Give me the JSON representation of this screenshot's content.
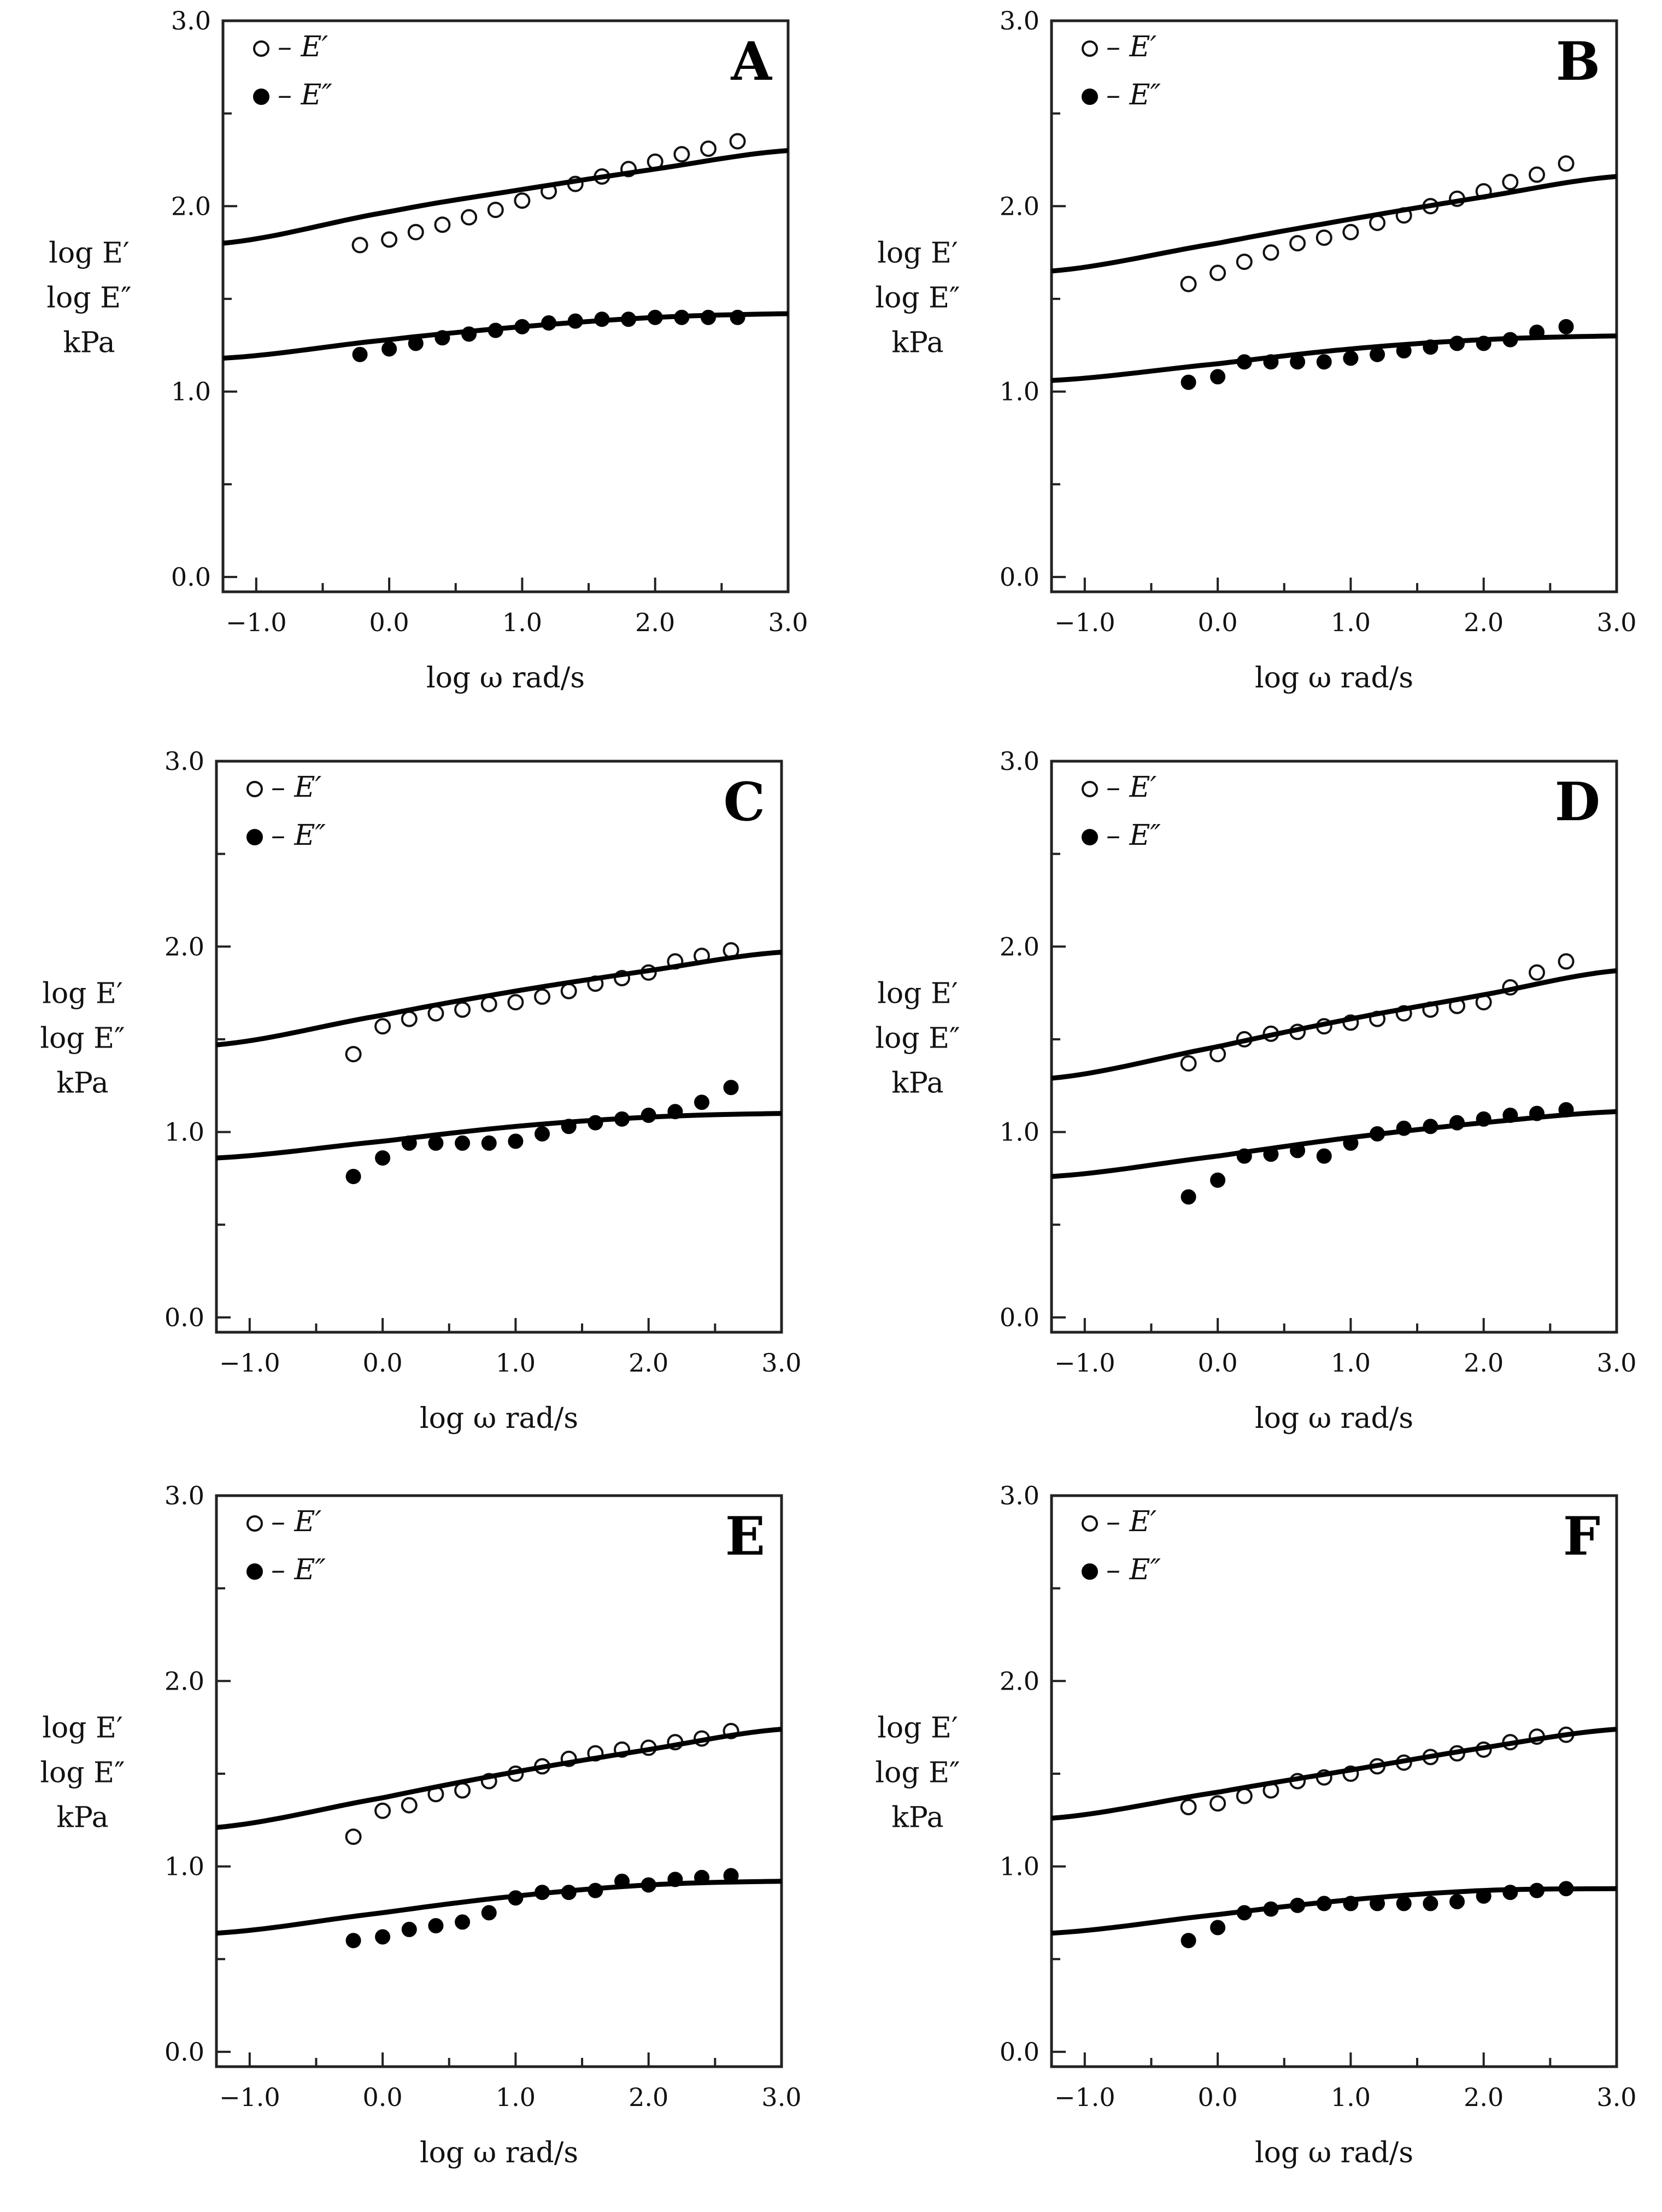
{
  "chart_data": [
    {
      "type": "scatter",
      "panel": "A",
      "xlabel": "log ω  rad/s",
      "ylabel": [
        "log E′",
        "log E″",
        "kPa"
      ],
      "xlim": [
        -1.25,
        3.0
      ],
      "ylim": [
        0.0,
        3.0
      ],
      "xticks": [
        "−1.0",
        "0.0",
        "1.0",
        "2.0",
        "3.0"
      ],
      "yticks": [
        "0.0",
        "1.0",
        "2.0",
        "3.0"
      ],
      "legend": [
        {
          "marker": "open",
          "label": "– E′"
        },
        {
          "marker": "filled",
          "label": "– E″"
        }
      ],
      "x": [
        -0.22,
        0.0,
        0.2,
        0.4,
        0.6,
        0.8,
        1.0,
        1.2,
        1.4,
        1.6,
        1.8,
        2.0,
        2.2,
        2.4,
        2.62
      ],
      "series": [
        {
          "name": "E′ (measured)",
          "marker": "open",
          "values": [
            1.79,
            1.82,
            1.86,
            1.9,
            1.94,
            1.98,
            2.03,
            2.08,
            2.12,
            2.16,
            2.2,
            2.24,
            2.28,
            2.31,
            2.35
          ]
        },
        {
          "name": "E″ (measured)",
          "marker": "filled",
          "values": [
            1.2,
            1.23,
            1.26,
            1.29,
            1.31,
            1.33,
            1.35,
            1.37,
            1.38,
            1.39,
            1.39,
            1.4,
            1.4,
            1.4,
            1.4
          ]
        },
        {
          "name": "E′ fit",
          "type": "line",
          "x": [
            -1.25,
            0.0,
            1.0,
            2.0,
            3.0
          ],
          "values": [
            1.8,
            1.97,
            2.09,
            2.2,
            2.3
          ]
        },
        {
          "name": "E″ fit",
          "type": "line",
          "x": [
            -1.25,
            0.0,
            1.0,
            2.0,
            3.0
          ],
          "values": [
            1.18,
            1.28,
            1.35,
            1.4,
            1.42
          ]
        }
      ]
    },
    {
      "type": "scatter",
      "panel": "B",
      "xlabel": "log ω  rad/s",
      "ylabel": [
        "log E′",
        "log E″",
        "kPa"
      ],
      "xlim": [
        -1.25,
        3.0
      ],
      "ylim": [
        0.0,
        3.0
      ],
      "xticks": [
        "−1.0",
        "0.0",
        "1.0",
        "2.0",
        "3.0"
      ],
      "yticks": [
        "0.0",
        "1.0",
        "2.0",
        "3.0"
      ],
      "legend": [
        {
          "marker": "open",
          "label": "– E′"
        },
        {
          "marker": "filled",
          "label": "– E″"
        }
      ],
      "x": [
        -0.22,
        0.0,
        0.2,
        0.4,
        0.6,
        0.8,
        1.0,
        1.2,
        1.4,
        1.6,
        1.8,
        2.0,
        2.2,
        2.4,
        2.62
      ],
      "series": [
        {
          "name": "E′ (measured)",
          "marker": "open",
          "values": [
            1.58,
            1.64,
            1.7,
            1.75,
            1.8,
            1.83,
            1.86,
            1.91,
            1.95,
            2.0,
            2.04,
            2.08,
            2.13,
            2.17,
            2.23
          ]
        },
        {
          "name": "E″ (measured)",
          "marker": "filled",
          "values": [
            1.05,
            1.08,
            1.16,
            1.16,
            1.16,
            1.16,
            1.18,
            1.2,
            1.22,
            1.24,
            1.26,
            1.26,
            1.28,
            1.32,
            1.35
          ]
        },
        {
          "name": "E′ fit",
          "type": "line",
          "x": [
            -1.25,
            0.0,
            1.0,
            2.0,
            3.0
          ],
          "values": [
            1.65,
            1.8,
            1.93,
            2.05,
            2.16
          ]
        },
        {
          "name": "E″ fit",
          "type": "line",
          "x": [
            -1.25,
            0.0,
            1.0,
            2.0,
            3.0
          ],
          "values": [
            1.06,
            1.15,
            1.23,
            1.28,
            1.3
          ]
        }
      ]
    },
    {
      "type": "scatter",
      "panel": "C",
      "xlabel": "log ω  rad/s",
      "ylabel": [
        "log E′",
        "log E″",
        "kPa"
      ],
      "xlim": [
        -1.25,
        3.0
      ],
      "ylim": [
        0.0,
        3.0
      ],
      "xticks": [
        "−1.0",
        "0.0",
        "1.0",
        "2.0",
        "3.0"
      ],
      "yticks": [
        "0.0",
        "1.0",
        "2.0",
        "3.0"
      ],
      "legend": [
        {
          "marker": "open",
          "label": "– E′"
        },
        {
          "marker": "filled",
          "label": "– E″"
        }
      ],
      "x": [
        -0.22,
        0.0,
        0.2,
        0.4,
        0.6,
        0.8,
        1.0,
        1.2,
        1.4,
        1.6,
        1.8,
        2.0,
        2.2,
        2.4,
        2.62
      ],
      "series": [
        {
          "name": "E′ (measured)",
          "marker": "open",
          "values": [
            1.42,
            1.57,
            1.61,
            1.64,
            1.66,
            1.69,
            1.7,
            1.73,
            1.76,
            1.8,
            1.83,
            1.86,
            1.92,
            1.95,
            1.98
          ]
        },
        {
          "name": "E″ (measured)",
          "marker": "filled",
          "values": [
            0.76,
            0.86,
            0.94,
            0.94,
            0.94,
            0.94,
            0.95,
            0.99,
            1.03,
            1.05,
            1.07,
            1.09,
            1.11,
            1.16,
            1.24
          ]
        },
        {
          "name": "E′ fit",
          "type": "line",
          "x": [
            -1.25,
            0.0,
            1.0,
            2.0,
            3.0
          ],
          "values": [
            1.47,
            1.63,
            1.76,
            1.87,
            1.97
          ]
        },
        {
          "name": "E″ fit",
          "type": "line",
          "x": [
            -1.25,
            0.0,
            1.0,
            2.0,
            3.0
          ],
          "values": [
            0.86,
            0.95,
            1.03,
            1.08,
            1.1
          ]
        }
      ]
    },
    {
      "type": "scatter",
      "panel": "D",
      "xlabel": "log ω  rad/s",
      "ylabel": [
        "log E′",
        "log E″",
        "kPa"
      ],
      "xlim": [
        -1.25,
        3.0
      ],
      "ylim": [
        0.0,
        3.0
      ],
      "xticks": [
        "−1.0",
        "0.0",
        "1.0",
        "2.0",
        "3.0"
      ],
      "yticks": [
        "0.0",
        "1.0",
        "2.0",
        "3.0"
      ],
      "legend": [
        {
          "marker": "open",
          "label": "– E′"
        },
        {
          "marker": "filled",
          "label": "– E″"
        }
      ],
      "x": [
        -0.22,
        0.0,
        0.2,
        0.4,
        0.6,
        0.8,
        1.0,
        1.2,
        1.4,
        1.6,
        1.8,
        2.0,
        2.2,
        2.4,
        2.62
      ],
      "series": [
        {
          "name": "E′ (measured)",
          "marker": "open",
          "values": [
            1.37,
            1.42,
            1.5,
            1.53,
            1.54,
            1.57,
            1.59,
            1.61,
            1.64,
            1.66,
            1.68,
            1.7,
            1.78,
            1.86,
            1.92
          ]
        },
        {
          "name": "E″ (measured)",
          "marker": "filled",
          "values": [
            0.65,
            0.74,
            0.87,
            0.88,
            0.9,
            0.87,
            0.94,
            0.99,
            1.02,
            1.03,
            1.05,
            1.07,
            1.09,
            1.1,
            1.12
          ]
        },
        {
          "name": "E′ fit",
          "type": "line",
          "x": [
            -1.25,
            0.0,
            1.0,
            2.0,
            3.0
          ],
          "values": [
            1.29,
            1.46,
            1.61,
            1.74,
            1.87
          ]
        },
        {
          "name": "E″ fit",
          "type": "line",
          "x": [
            -1.25,
            0.0,
            1.0,
            2.0,
            3.0
          ],
          "values": [
            0.76,
            0.87,
            0.97,
            1.05,
            1.11
          ]
        }
      ]
    },
    {
      "type": "scatter",
      "panel": "E",
      "xlabel": "log ω  rad/s",
      "ylabel": [
        "log E′",
        "log E″",
        "kPa"
      ],
      "xlim": [
        -1.25,
        3.0
      ],
      "ylim": [
        0.0,
        3.0
      ],
      "xticks": [
        "−1.0",
        "0.0",
        "1.0",
        "2.0",
        "3.0"
      ],
      "yticks": [
        "0.0",
        "1.0",
        "2.0",
        "3.0"
      ],
      "legend": [
        {
          "marker": "open",
          "label": "– E′"
        },
        {
          "marker": "filled",
          "label": "– E″"
        }
      ],
      "x": [
        -0.22,
        0.0,
        0.2,
        0.4,
        0.6,
        0.8,
        1.0,
        1.2,
        1.4,
        1.6,
        1.8,
        2.0,
        2.2,
        2.4,
        2.62
      ],
      "series": [
        {
          "name": "E′ (measured)",
          "marker": "open",
          "values": [
            1.16,
            1.3,
            1.33,
            1.39,
            1.41,
            1.46,
            1.5,
            1.54,
            1.58,
            1.61,
            1.63,
            1.64,
            1.67,
            1.69,
            1.73
          ]
        },
        {
          "name": "E″ (measured)",
          "marker": "filled",
          "values": [
            0.6,
            0.62,
            0.66,
            0.68,
            0.7,
            0.75,
            0.83,
            0.86,
            0.86,
            0.87,
            0.92,
            0.9,
            0.93,
            0.94,
            0.95
          ]
        },
        {
          "name": "E′ fit",
          "type": "line",
          "x": [
            -1.25,
            0.0,
            1.0,
            2.0,
            3.0
          ],
          "values": [
            1.21,
            1.37,
            1.51,
            1.63,
            1.74
          ]
        },
        {
          "name": "E″ fit",
          "type": "line",
          "x": [
            -1.25,
            0.0,
            1.0,
            2.0,
            3.0
          ],
          "values": [
            0.64,
            0.75,
            0.84,
            0.9,
            0.92
          ]
        }
      ]
    },
    {
      "type": "scatter",
      "panel": "F",
      "xlabel": "log ω  rad/s",
      "ylabel": [
        "log E′",
        "log E″",
        "kPa"
      ],
      "xlim": [
        -1.25,
        3.0
      ],
      "ylim": [
        0.0,
        3.0
      ],
      "xticks": [
        "−1.0",
        "0.0",
        "1.0",
        "2.0",
        "3.0"
      ],
      "yticks": [
        "0.0",
        "1.0",
        "2.0",
        "3.0"
      ],
      "legend": [
        {
          "marker": "open",
          "label": "– E′"
        },
        {
          "marker": "filled",
          "label": "– E″"
        }
      ],
      "x": [
        -0.22,
        0.0,
        0.2,
        0.4,
        0.6,
        0.8,
        1.0,
        1.2,
        1.4,
        1.6,
        1.8,
        2.0,
        2.2,
        2.4,
        2.62
      ],
      "series": [
        {
          "name": "E′ (measured)",
          "marker": "open",
          "values": [
            1.32,
            1.34,
            1.38,
            1.41,
            1.46,
            1.48,
            1.5,
            1.54,
            1.56,
            1.59,
            1.61,
            1.63,
            1.67,
            1.7,
            1.71
          ]
        },
        {
          "name": "E″ (measured)",
          "marker": "filled",
          "values": [
            0.6,
            0.67,
            0.75,
            0.77,
            0.79,
            0.8,
            0.8,
            0.8,
            0.8,
            0.8,
            0.81,
            0.84,
            0.86,
            0.87,
            0.88
          ]
        },
        {
          "name": "E′ fit",
          "type": "line",
          "x": [
            -1.25,
            0.0,
            1.0,
            2.0,
            3.0
          ],
          "values": [
            1.26,
            1.4,
            1.52,
            1.64,
            1.74
          ]
        },
        {
          "name": "E″ fit",
          "type": "line",
          "x": [
            -1.25,
            0.0,
            1.0,
            2.0,
            3.0
          ],
          "values": [
            0.64,
            0.74,
            0.82,
            0.87,
            0.88
          ]
        }
      ]
    }
  ]
}
